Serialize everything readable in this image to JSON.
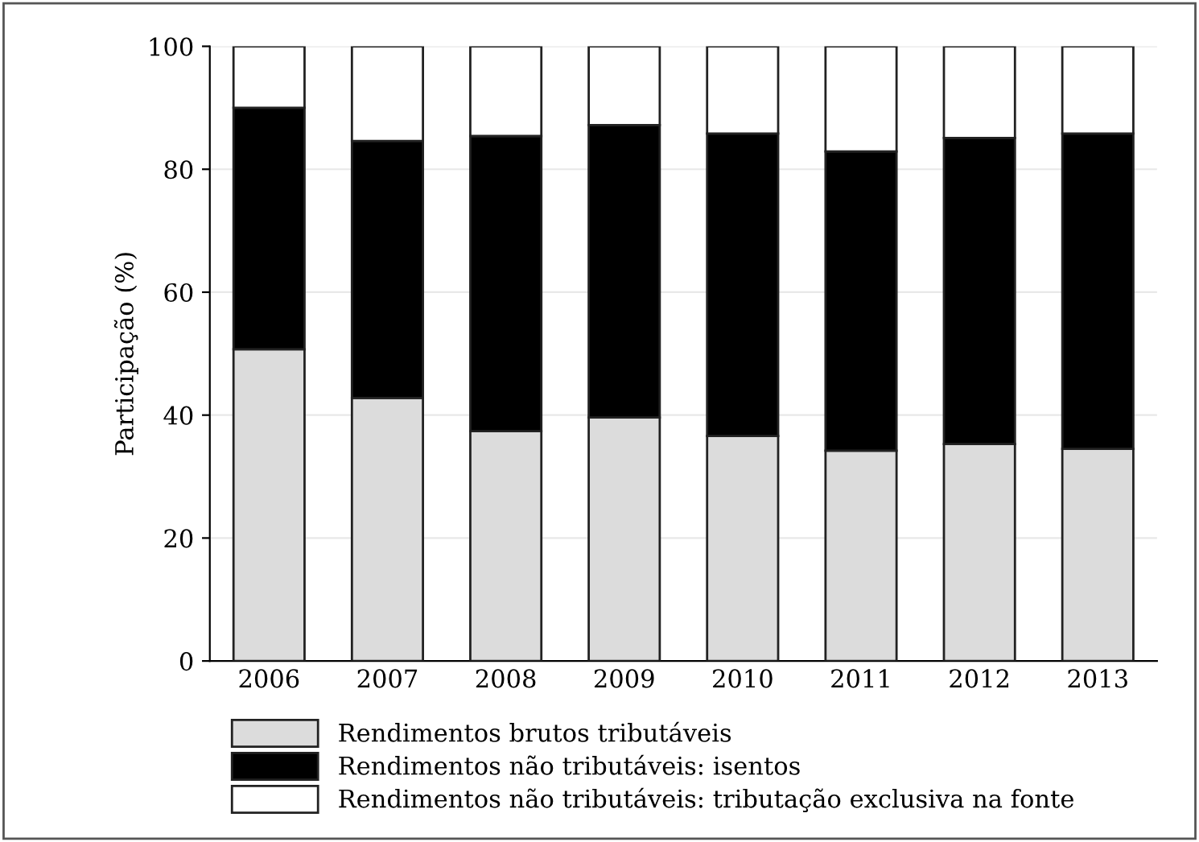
{
  "chart_data": {
    "type": "bar",
    "stacked": true,
    "ylabel": "Participação (%)",
    "categories": [
      "2006",
      "2007",
      "2008",
      "2009",
      "2010",
      "2011",
      "2012",
      "2013"
    ],
    "series": [
      {
        "name": "Rendimentos brutos tributáveis",
        "color": "#dcdcdc",
        "values": [
          50.7,
          42.8,
          37.4,
          39.6,
          36.6,
          34.2,
          35.3,
          34.5
        ]
      },
      {
        "name": "Rendimentos não tributáveis: isentos",
        "color": "#000000",
        "values": [
          39.3,
          41.8,
          48.0,
          47.6,
          49.2,
          48.7,
          49.8,
          51.3
        ]
      },
      {
        "name": "Rendimentos não tributáveis: tributação exclusiva na fonte",
        "color": "#ffffff",
        "values": [
          10.0,
          15.4,
          14.6,
          12.8,
          14.2,
          17.1,
          14.9,
          14.2
        ]
      }
    ],
    "ylim": [
      0,
      100
    ],
    "yticks": [
      0,
      20,
      40,
      60,
      80,
      100
    ],
    "grid": "y",
    "legend": "bottom"
  }
}
